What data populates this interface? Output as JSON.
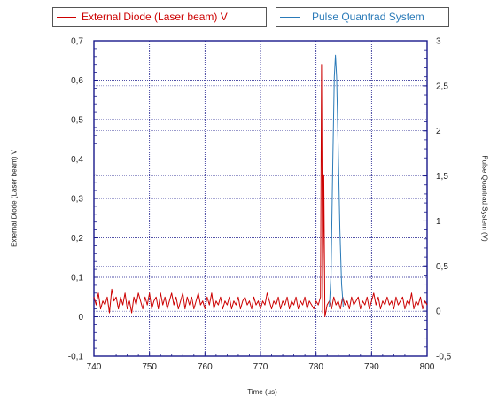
{
  "chart_data": {
    "type": "line",
    "xlabel": "Time (us)",
    "ylabel_left": "External Diode (Laser beam) V",
    "ylabel_right": "Pulse Quantrad System (V)",
    "x_ticks": [
      "740",
      "750",
      "760",
      "770",
      "780",
      "790",
      "800"
    ],
    "y_left_ticks": [
      "-0,1",
      "0",
      "0,1",
      "0,2",
      "0,3",
      "0,4",
      "0,5",
      "0,6",
      "0,7"
    ],
    "y_right_ticks": [
      "-0,5",
      "0",
      "0,5",
      "1",
      "1,5",
      "2",
      "2,5",
      "3"
    ],
    "xlim": [
      740,
      800
    ],
    "ylim_left": [
      -0.1,
      0.7
    ],
    "ylim_right": [
      -0.5,
      3
    ],
    "grid": true,
    "legend_placement": "top",
    "series": [
      {
        "name": "External Diode (Laser beam) V",
        "axis": "left",
        "color": "#cc0000",
        "points": [
          [
            740,
            0.05
          ],
          [
            740.4,
            0.03
          ],
          [
            740.8,
            0.06
          ],
          [
            741.2,
            0.02
          ],
          [
            741.6,
            0.04
          ],
          [
            742,
            0.03
          ],
          [
            742.4,
            0.05
          ],
          [
            742.8,
            0.01
          ],
          [
            743.2,
            0.07
          ],
          [
            743.6,
            0.04
          ],
          [
            744,
            0.05
          ],
          [
            744.4,
            0.02
          ],
          [
            744.8,
            0.05
          ],
          [
            745.2,
            0.03
          ],
          [
            745.6,
            0.06
          ],
          [
            746,
            0.02
          ],
          [
            746.4,
            0.04
          ],
          [
            746.8,
            0.01
          ],
          [
            747.2,
            0.05
          ],
          [
            747.6,
            0.03
          ],
          [
            748,
            0.06
          ],
          [
            748.4,
            0.04
          ],
          [
            748.8,
            0.02
          ],
          [
            749.2,
            0.05
          ],
          [
            749.6,
            0.03
          ],
          [
            750,
            0.06
          ],
          [
            750.4,
            0.02
          ],
          [
            750.8,
            0.04
          ],
          [
            751.2,
            0.05
          ],
          [
            751.6,
            0.02
          ],
          [
            752,
            0.06
          ],
          [
            752.4,
            0.03
          ],
          [
            752.8,
            0.05
          ],
          [
            753.2,
            0.02
          ],
          [
            753.6,
            0.04
          ],
          [
            754,
            0.06
          ],
          [
            754.4,
            0.03
          ],
          [
            754.8,
            0.05
          ],
          [
            755.2,
            0.02
          ],
          [
            755.6,
            0.04
          ],
          [
            756,
            0.06
          ],
          [
            756.4,
            0.02
          ],
          [
            756.8,
            0.05
          ],
          [
            757.2,
            0.03
          ],
          [
            757.6,
            0.05
          ],
          [
            758,
            0.02
          ],
          [
            758.4,
            0.04
          ],
          [
            758.8,
            0.06
          ],
          [
            759.2,
            0.03
          ],
          [
            759.6,
            0.04
          ],
          [
            760,
            0.02
          ],
          [
            760.4,
            0.05
          ],
          [
            760.8,
            0.03
          ],
          [
            761.2,
            0.06
          ],
          [
            761.6,
            0.02
          ],
          [
            762,
            0.04
          ],
          [
            762.4,
            0.03
          ],
          [
            762.8,
            0.05
          ],
          [
            763.2,
            0.02
          ],
          [
            763.6,
            0.04
          ],
          [
            764,
            0.03
          ],
          [
            764.4,
            0.05
          ],
          [
            764.8,
            0.02
          ],
          [
            765.2,
            0.04
          ],
          [
            765.6,
            0.03
          ],
          [
            766,
            0.05
          ],
          [
            766.4,
            0.02
          ],
          [
            766.8,
            0.04
          ],
          [
            767.2,
            0.05
          ],
          [
            767.6,
            0.03
          ],
          [
            768,
            0.04
          ],
          [
            768.4,
            0.02
          ],
          [
            768.8,
            0.05
          ],
          [
            769.2,
            0.03
          ],
          [
            769.6,
            0.04
          ],
          [
            770,
            0.02
          ],
          [
            770.4,
            0.04
          ],
          [
            770.8,
            0.03
          ],
          [
            771.2,
            0.06
          ],
          [
            771.6,
            0.04
          ],
          [
            772,
            0.02
          ],
          [
            772.4,
            0.04
          ],
          [
            772.8,
            0.03
          ],
          [
            773.2,
            0.05
          ],
          [
            773.6,
            0.02
          ],
          [
            774,
            0.04
          ],
          [
            774.4,
            0.03
          ],
          [
            774.8,
            0.05
          ],
          [
            775.2,
            0.02
          ],
          [
            775.6,
            0.04
          ],
          [
            776,
            0.03
          ],
          [
            776.4,
            0.05
          ],
          [
            776.8,
            0.02
          ],
          [
            777.2,
            0.04
          ],
          [
            777.6,
            0.03
          ],
          [
            778,
            0.05
          ],
          [
            778.4,
            0.02
          ],
          [
            778.8,
            0.04
          ],
          [
            779.2,
            0.03
          ],
          [
            779.6,
            0.02
          ],
          [
            780,
            0.04
          ],
          [
            780.4,
            0.03
          ],
          [
            780.8,
            0.05
          ],
          [
            781,
            0.64
          ],
          [
            781.2,
            0.01
          ],
          [
            781.4,
            0.36
          ],
          [
            781.6,
            0.0
          ],
          [
            782,
            0.03
          ],
          [
            782.4,
            0.04
          ],
          [
            782.8,
            0.02
          ],
          [
            783.2,
            0.05
          ],
          [
            783.6,
            0.03
          ],
          [
            784,
            0.04
          ],
          [
            784.4,
            0.02
          ],
          [
            784.8,
            0.05
          ],
          [
            785.2,
            0.03
          ],
          [
            785.6,
            0.04
          ],
          [
            786,
            0.02
          ],
          [
            786.4,
            0.05
          ],
          [
            786.8,
            0.03
          ],
          [
            787.2,
            0.04
          ],
          [
            787.6,
            0.05
          ],
          [
            788,
            0.02
          ],
          [
            788.4,
            0.04
          ],
          [
            788.8,
            0.03
          ],
          [
            789.2,
            0.05
          ],
          [
            789.6,
            0.02
          ],
          [
            790,
            0.04
          ],
          [
            790.4,
            0.06
          ],
          [
            790.8,
            0.03
          ],
          [
            791.2,
            0.05
          ],
          [
            791.6,
            0.02
          ],
          [
            792,
            0.04
          ],
          [
            792.4,
            0.03
          ],
          [
            792.8,
            0.05
          ],
          [
            793.2,
            0.03
          ],
          [
            793.6,
            0.04
          ],
          [
            794,
            0.02
          ],
          [
            794.4,
            0.05
          ],
          [
            794.8,
            0.03
          ],
          [
            795.2,
            0.04
          ],
          [
            795.6,
            0.05
          ],
          [
            796,
            0.02
          ],
          [
            796.4,
            0.04
          ],
          [
            796.8,
            0.03
          ],
          [
            797.2,
            0.06
          ],
          [
            797.6,
            0.02
          ],
          [
            798,
            0.04
          ],
          [
            798.4,
            0.03
          ],
          [
            798.8,
            0.05
          ],
          [
            799.2,
            0.02
          ],
          [
            799.6,
            0.04
          ],
          [
            800,
            0.03
          ]
        ]
      },
      {
        "name": "Pulse Quantrad System",
        "axis": "right",
        "color": "#2a7ab8",
        "points": [
          [
            782.4,
            0.05
          ],
          [
            782.7,
            0.4
          ],
          [
            783,
            1.6
          ],
          [
            783.3,
            2.6
          ],
          [
            783.5,
            2.84
          ],
          [
            783.7,
            2.6
          ],
          [
            784,
            1.8
          ],
          [
            784.3,
            0.9
          ],
          [
            784.6,
            0.3
          ],
          [
            784.9,
            0.05
          ]
        ]
      }
    ]
  }
}
